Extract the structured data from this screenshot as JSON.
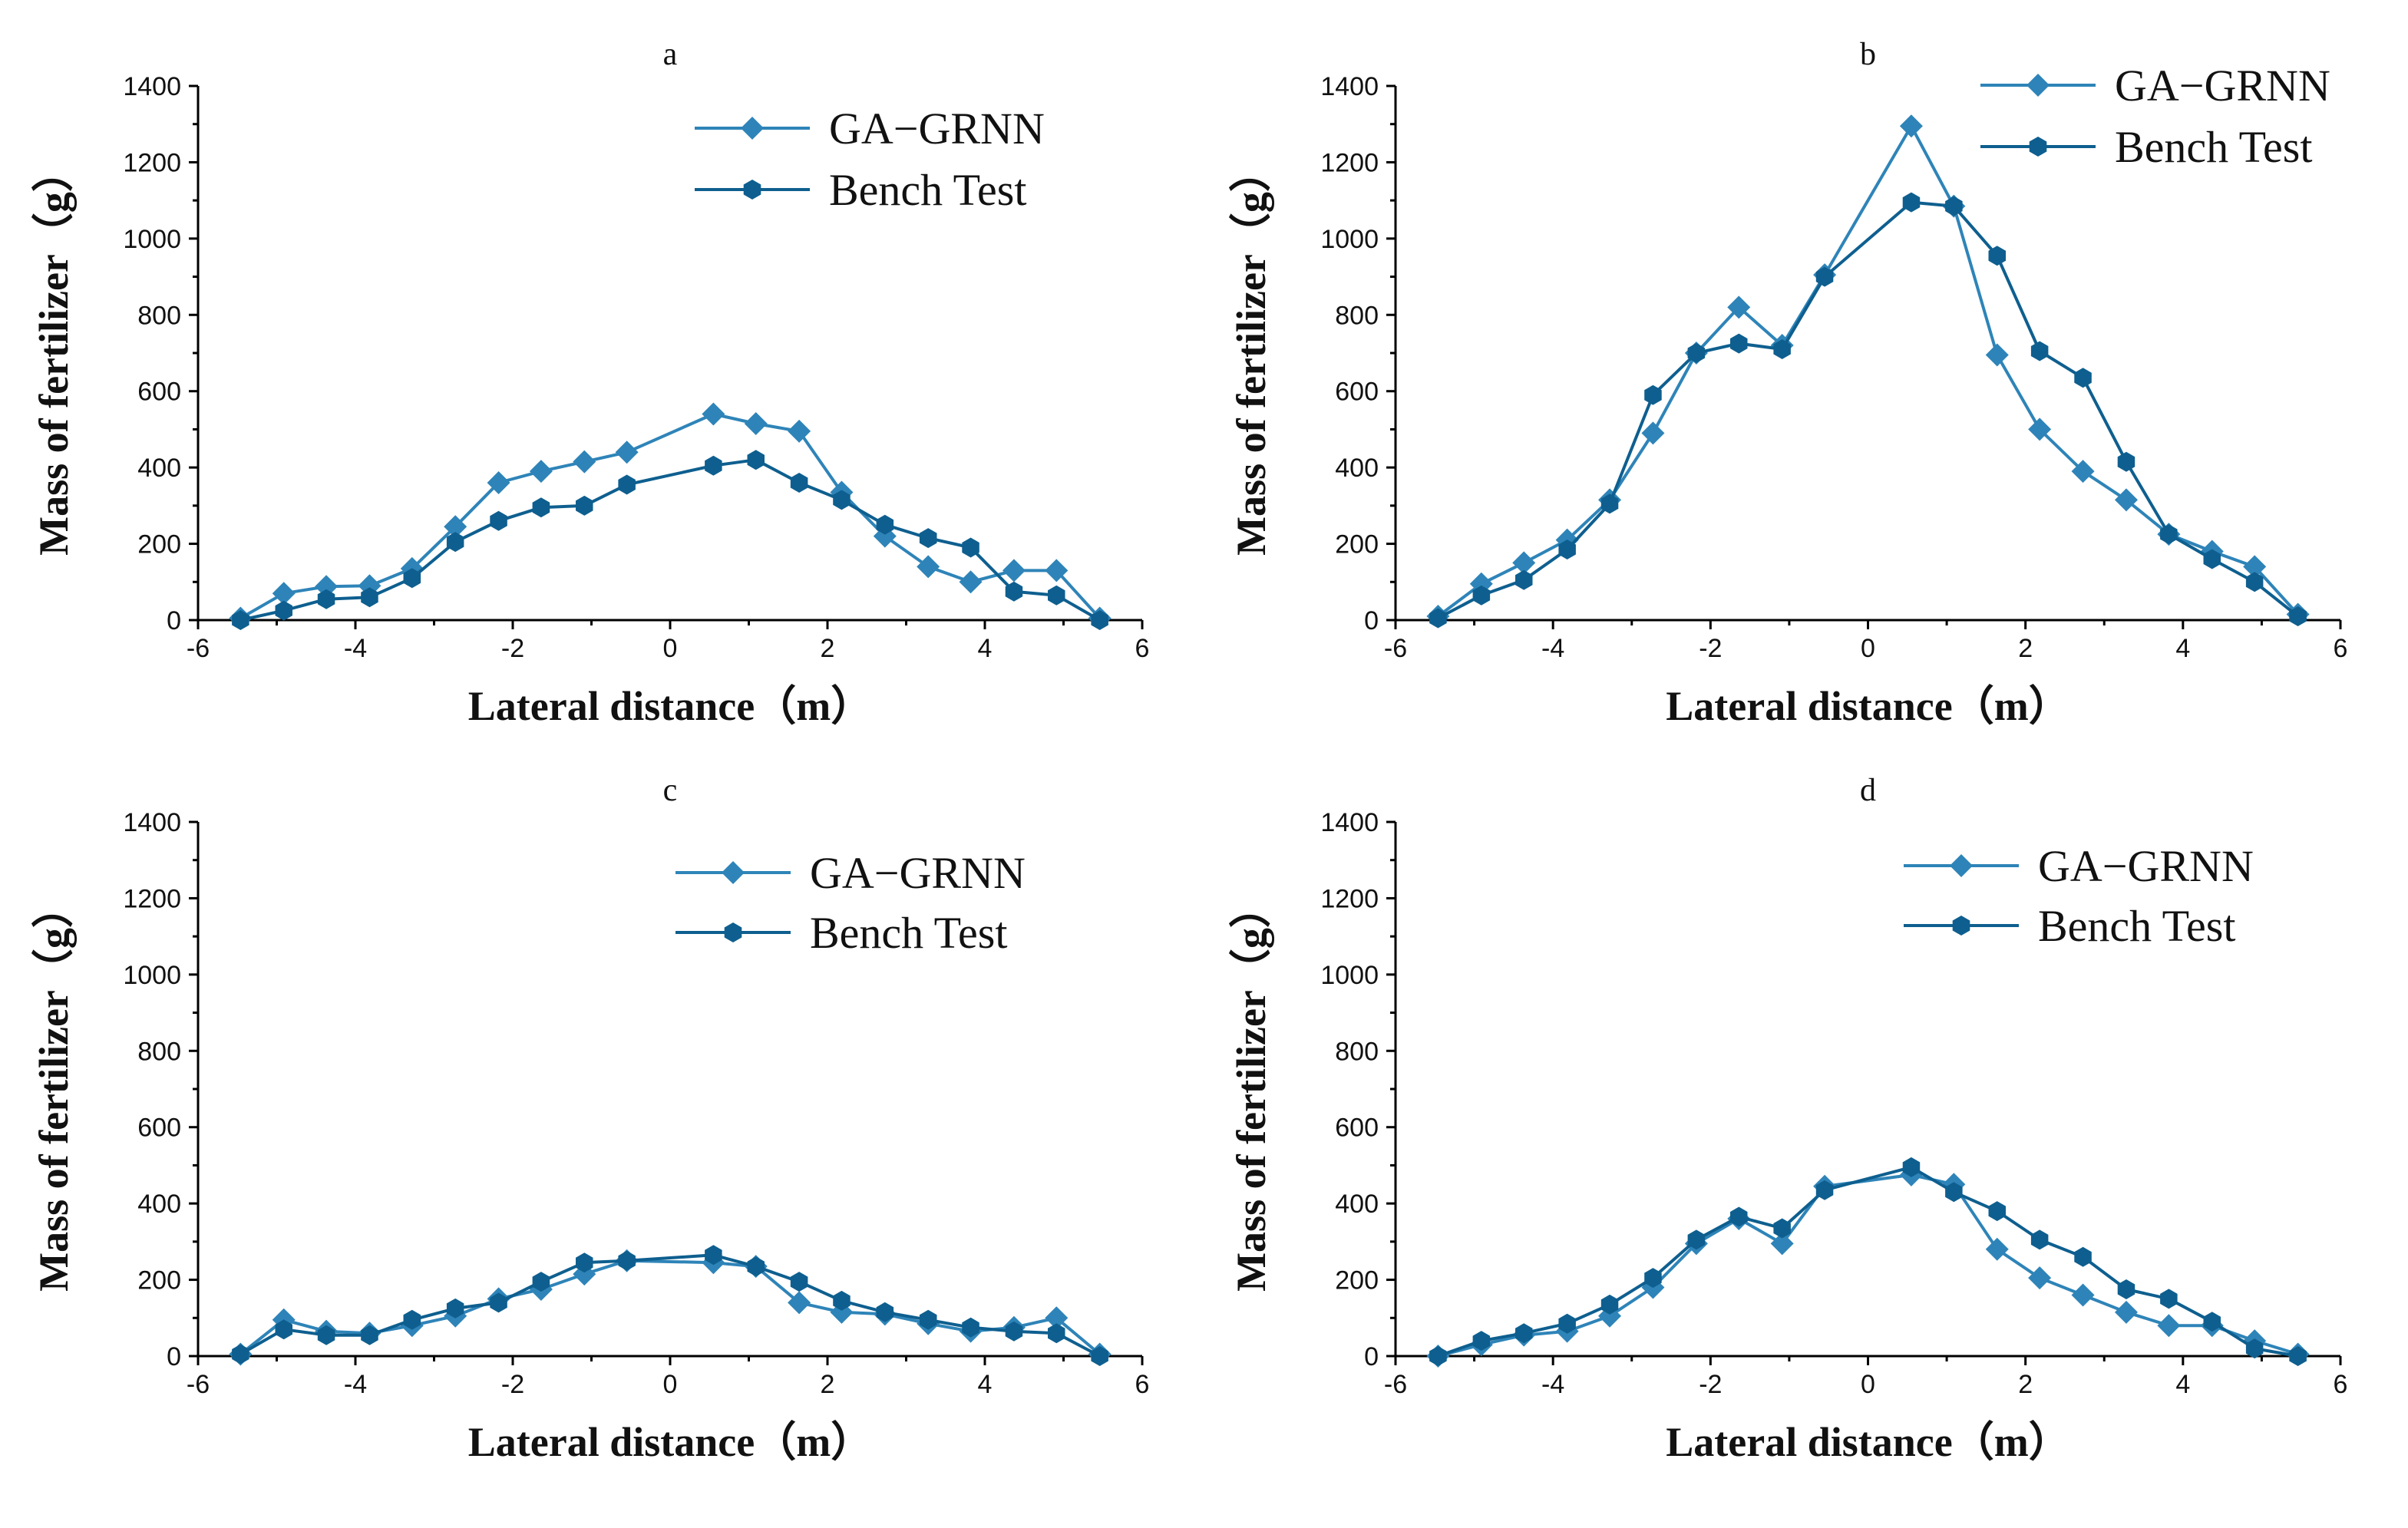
{
  "chart_data": [
    {
      "type": "line",
      "panel_label": "a",
      "xlabel": "Lateral distance（m）",
      "ylabel": "Mass of fertilizer（g）",
      "xlim": [
        -6,
        6
      ],
      "ylim": [
        0,
        1400
      ],
      "xticks": [
        "-6",
        "-4",
        "-2",
        "0",
        "2",
        "4",
        "6"
      ],
      "yticks": [
        "0",
        "200",
        "400",
        "600",
        "800",
        "1000",
        "1200",
        "1400"
      ],
      "x": [
        -5.46,
        -4.91,
        -4.37,
        -3.82,
        -3.28,
        -2.73,
        -2.18,
        -1.64,
        -1.09,
        -0.55,
        0.55,
        1.09,
        1.64,
        2.18,
        2.73,
        3.28,
        3.82,
        4.37,
        4.91,
        5.46
      ],
      "series": [
        {
          "name": "GA−GRNN",
          "color": "#2E84B8",
          "marker": "diamond",
          "values": [
            5,
            70,
            88,
            90,
            135,
            245,
            360,
            390,
            415,
            440,
            540,
            515,
            495,
            335,
            220,
            140,
            100,
            130,
            130,
            5
          ]
        },
        {
          "name": "Bench Test",
          "color": "#0E5F8F",
          "marker": "hexagon",
          "values": [
            0,
            25,
            55,
            60,
            110,
            205,
            260,
            295,
            300,
            355,
            405,
            420,
            360,
            315,
            250,
            215,
            190,
            75,
            65,
            0
          ]
        }
      ]
    },
    {
      "type": "line",
      "panel_label": "b",
      "xlabel": "Lateral distance（m）",
      "ylabel": "Mass of fertilizer（g）",
      "xlim": [
        -6,
        6
      ],
      "ylim": [
        0,
        1400
      ],
      "xticks": [
        "-6",
        "-4",
        "-2",
        "0",
        "2",
        "4",
        "6"
      ],
      "yticks": [
        "0",
        "200",
        "400",
        "600",
        "800",
        "1000",
        "1200",
        "1400"
      ],
      "x": [
        -5.46,
        -4.91,
        -4.37,
        -3.82,
        -3.28,
        -2.73,
        -2.18,
        -1.64,
        -1.09,
        -0.55,
        0.55,
        1.09,
        1.64,
        2.18,
        2.73,
        3.28,
        3.82,
        4.37,
        4.91,
        5.46
      ],
      "series": [
        {
          "name": "GA−GRNN",
          "color": "#2E84B8",
          "marker": "diamond",
          "values": [
            10,
            95,
            150,
            210,
            315,
            490,
            700,
            820,
            720,
            905,
            1295,
            1085,
            695,
            500,
            390,
            315,
            225,
            180,
            140,
            15
          ]
        },
        {
          "name": "Bench Test",
          "color": "#0E5F8F",
          "marker": "hexagon",
          "values": [
            5,
            65,
            105,
            185,
            305,
            590,
            700,
            725,
            710,
            900,
            1095,
            1085,
            955,
            705,
            635,
            415,
            225,
            160,
            100,
            10
          ]
        }
      ]
    },
    {
      "type": "line",
      "panel_label": "c",
      "xlabel": "Lateral distance（m）",
      "ylabel": "Mass of fertilizer（g）",
      "xlim": [
        -6,
        6
      ],
      "ylim": [
        0,
        1400
      ],
      "xticks": [
        "-6",
        "-4",
        "-2",
        "0",
        "2",
        "4",
        "6"
      ],
      "yticks": [
        "0",
        "200",
        "400",
        "600",
        "800",
        "1000",
        "1200",
        "1400"
      ],
      "x": [
        -5.46,
        -4.91,
        -4.37,
        -3.82,
        -3.28,
        -2.73,
        -2.18,
        -1.64,
        -1.09,
        -0.55,
        0.55,
        1.09,
        1.64,
        2.18,
        2.73,
        3.28,
        3.82,
        4.37,
        4.91,
        5.46
      ],
      "series": [
        {
          "name": "GA−GRNN",
          "color": "#2E84B8",
          "marker": "diamond",
          "values": [
            5,
            95,
            65,
            60,
            80,
            105,
            150,
            175,
            215,
            250,
            245,
            235,
            140,
            115,
            110,
            85,
            65,
            75,
            100,
            5
          ]
        },
        {
          "name": "Bench Test",
          "color": "#0E5F8F",
          "marker": "hexagon",
          "values": [
            5,
            70,
            55,
            55,
            95,
            125,
            140,
            195,
            245,
            250,
            265,
            235,
            195,
            145,
            115,
            95,
            75,
            65,
            60,
            0
          ]
        }
      ]
    },
    {
      "type": "line",
      "panel_label": "d",
      "xlabel": "Lateral distance（m）",
      "ylabel": "Mass of fertilizer（g）",
      "xlim": [
        -6,
        6
      ],
      "ylim": [
        0,
        1400
      ],
      "xticks": [
        "-6",
        "-4",
        "-2",
        "0",
        "2",
        "4",
        "6"
      ],
      "yticks": [
        "0",
        "200",
        "400",
        "600",
        "800",
        "1000",
        "1200",
        "1400"
      ],
      "x": [
        -5.46,
        -4.91,
        -4.37,
        -3.82,
        -3.28,
        -2.73,
        -2.18,
        -1.64,
        -1.09,
        -0.55,
        0.55,
        1.09,
        1.64,
        2.18,
        2.73,
        3.28,
        3.82,
        4.37,
        4.91,
        5.46
      ],
      "series": [
        {
          "name": "GA−GRNN",
          "color": "#2E84B8",
          "marker": "diamond",
          "values": [
            0,
            30,
            55,
            65,
            105,
            180,
            295,
            360,
            295,
            445,
            475,
            450,
            280,
            205,
            160,
            115,
            80,
            80,
            40,
            5
          ]
        },
        {
          "name": "Bench Test",
          "color": "#0E5F8F",
          "marker": "hexagon",
          "values": [
            0,
            40,
            60,
            85,
            135,
            205,
            305,
            365,
            335,
            435,
            495,
            430,
            380,
            305,
            260,
            175,
            150,
            90,
            20,
            0
          ]
        }
      ]
    }
  ]
}
